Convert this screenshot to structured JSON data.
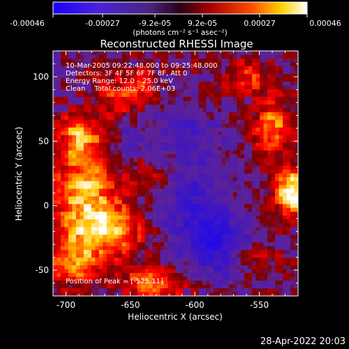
{
  "colorbar": {
    "tick_labels": [
      "-0.00046",
      "-0.00027",
      "-9.2e-05",
      "9.2e-05",
      "0.00027",
      "0.00046"
    ],
    "units_label": "(photons cm⁻² s⁻¹ asec⁻²)"
  },
  "annotation": {
    "time_range": "10-Mar-2005 09:22:48.000 to 09:25:48.000",
    "detectors": "Detectors: 3F 4F 5F 6F 7F 8F, Att 0",
    "energy_range": "Energy Range: 12.0 – 25.0 keV",
    "clean_counts": "Clean    Total counts: 2.06E+03",
    "peak_position": "Position of Peak = [-525,11]"
  },
  "footer": {
    "date_stamp": "28-Apr-2022 20:03"
  },
  "chart_data": {
    "type": "heatmap",
    "title": "Reconstructed RHESSI Image",
    "xlabel": "Heliocentric X (arcsec)",
    "ylabel": "Heliocentric Y (arcsec)",
    "xlim": [
      -710,
      -520
    ],
    "ylim": [
      -70,
      120
    ],
    "x_ticks": [
      -700,
      -650,
      -600,
      -550
    ],
    "y_ticks": [
      -50,
      0,
      50,
      100
    ],
    "colormap": "RHESSI 'hot' with blue-violet negatives",
    "color_range": [
      -0.00046,
      0.00046
    ],
    "peak": {
      "x": -525,
      "y": 11
    },
    "emission_sources": [
      {
        "x": -685,
        "y": 10,
        "sx": 18,
        "sy": 30,
        "amp": 0.00032
      },
      {
        "x": -665,
        "y": -20,
        "sx": 20,
        "sy": 14,
        "amp": 0.00028
      },
      {
        "x": -695,
        "y": -45,
        "sx": 14,
        "sy": 12,
        "amp": 0.00022
      },
      {
        "x": -690,
        "y": 55,
        "sx": 10,
        "sy": 10,
        "amp": 0.00024
      },
      {
        "x": -660,
        "y": 85,
        "sx": 14,
        "sy": 12,
        "amp": 0.00016
      },
      {
        "x": -640,
        "y": 95,
        "sx": 10,
        "sy": 8,
        "amp": 0.00014
      },
      {
        "x": -630,
        "y": -60,
        "sx": 18,
        "sy": 10,
        "amp": 0.00026
      },
      {
        "x": -635,
        "y": 25,
        "sx": 10,
        "sy": 10,
        "amp": 0.00012
      },
      {
        "x": -525,
        "y": 11,
        "sx": 9,
        "sy": 12,
        "amp": 0.00046
      },
      {
        "x": -540,
        "y": 60,
        "sx": 10,
        "sy": 16,
        "amp": 0.00028
      },
      {
        "x": -560,
        "y": 100,
        "sx": 12,
        "sy": 10,
        "amp": 0.00018
      },
      {
        "x": -555,
        "y": -40,
        "sx": 12,
        "sy": 8,
        "amp": 0.00016
      },
      {
        "x": -600,
        "y": -5,
        "sx": 20,
        "sy": 30,
        "amp": -0.00022
      },
      {
        "x": -580,
        "y": -30,
        "sx": 16,
        "sy": 16,
        "amp": -0.00024
      },
      {
        "x": -610,
        "y": 60,
        "sx": 16,
        "sy": 14,
        "amp": -0.00016
      },
      {
        "x": -650,
        "y": 50,
        "sx": 10,
        "sy": 10,
        "amp": -0.00012
      }
    ]
  }
}
